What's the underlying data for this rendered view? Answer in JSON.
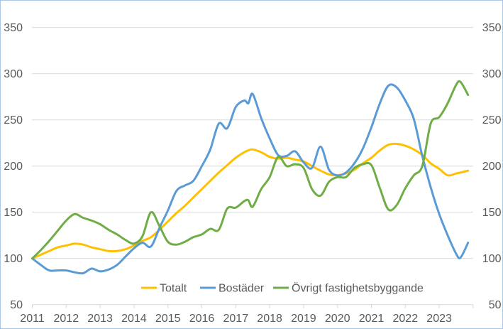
{
  "figure": {
    "background": "#FFFFFF",
    "border_color": "#ABC7E4",
    "grid_color": "#D9D9D9",
    "axis_text_color": "#595959"
  },
  "chart_data": {
    "type": "line",
    "title": "",
    "xlabel": "",
    "ylabel": "",
    "index_base_value": 100,
    "ylim": [
      50,
      350
    ],
    "y_ticks": [
      50,
      100,
      150,
      200,
      250,
      300,
      350
    ],
    "y_axis_sides": "both",
    "grid": "horizontal",
    "legend_position": "bottom-center",
    "x_tick_labels": [
      "2011",
      "2012",
      "2013",
      "2014",
      "2015",
      "2016",
      "2017",
      "2018",
      "2019",
      "2020",
      "2021",
      "2022",
      "2023"
    ],
    "x": [
      2011,
      2011.25,
      2011.5,
      2011.75,
      2012,
      2012.25,
      2012.5,
      2012.75,
      2013,
      2013.25,
      2013.5,
      2013.75,
      2014,
      2014.25,
      2014.5,
      2014.75,
      2015,
      2015.25,
      2015.5,
      2015.75,
      2016,
      2016.25,
      2016.5,
      2016.75,
      2017,
      2017.25,
      2017.37,
      2017.5,
      2017.75,
      2018,
      2018.25,
      2018.5,
      2018.75,
      2019,
      2019.25,
      2019.5,
      2019.75,
      2020,
      2020.25,
      2020.5,
      2020.75,
      2021,
      2021.25,
      2021.5,
      2021.75,
      2022,
      2022.25,
      2022.5,
      2022.75,
      2023,
      2023.25,
      2023.5,
      2023.63,
      2023.85
    ],
    "series": [
      {
        "name": "Totalt",
        "color": "#FFC000",
        "values": [
          100,
          104,
          108,
          112,
          114,
          116,
          115,
          112,
          110,
          108,
          108,
          110,
          114,
          119,
          123,
          131,
          140,
          149,
          157,
          166,
          175,
          184,
          193,
          201,
          209,
          215,
          217,
          218,
          215,
          210,
          208,
          209,
          207,
          205,
          200,
          195,
          191,
          190,
          192,
          196,
          203,
          209,
          217,
          223,
          224,
          222,
          218,
          212,
          203,
          197,
          190,
          192,
          193,
          195
        ]
      },
      {
        "name": "Bostäder",
        "color": "#5B9BD5",
        "values": [
          100,
          93,
          87,
          87,
          87,
          85,
          84,
          89,
          86,
          88,
          93,
          102,
          111,
          117,
          113,
          133,
          152,
          173,
          179,
          184,
          200,
          218,
          246,
          241,
          264,
          271,
          268,
          278,
          252,
          230,
          212,
          211,
          216,
          204,
          198,
          221,
          196,
          190,
          193,
          203,
          219,
          242,
          268,
          287,
          285,
          271,
          251,
          211,
          177,
          148,
          125,
          105,
          101,
          117
        ]
      },
      {
        "name": "Övrigt fastighetsbyggande",
        "color": "#70AD47",
        "values": [
          100,
          109,
          119,
          130,
          141,
          148,
          144,
          141,
          137,
          131,
          126,
          120,
          116,
          124,
          150,
          135,
          118,
          115,
          118,
          123,
          126,
          132,
          131,
          154,
          155,
          162,
          163,
          156,
          175,
          188,
          210,
          200,
          202,
          198,
          175,
          168,
          183,
          188,
          188,
          198,
          202,
          201,
          176,
          153,
          158,
          176,
          190,
          200,
          246,
          253,
          268,
          288,
          291,
          277
        ]
      }
    ]
  }
}
